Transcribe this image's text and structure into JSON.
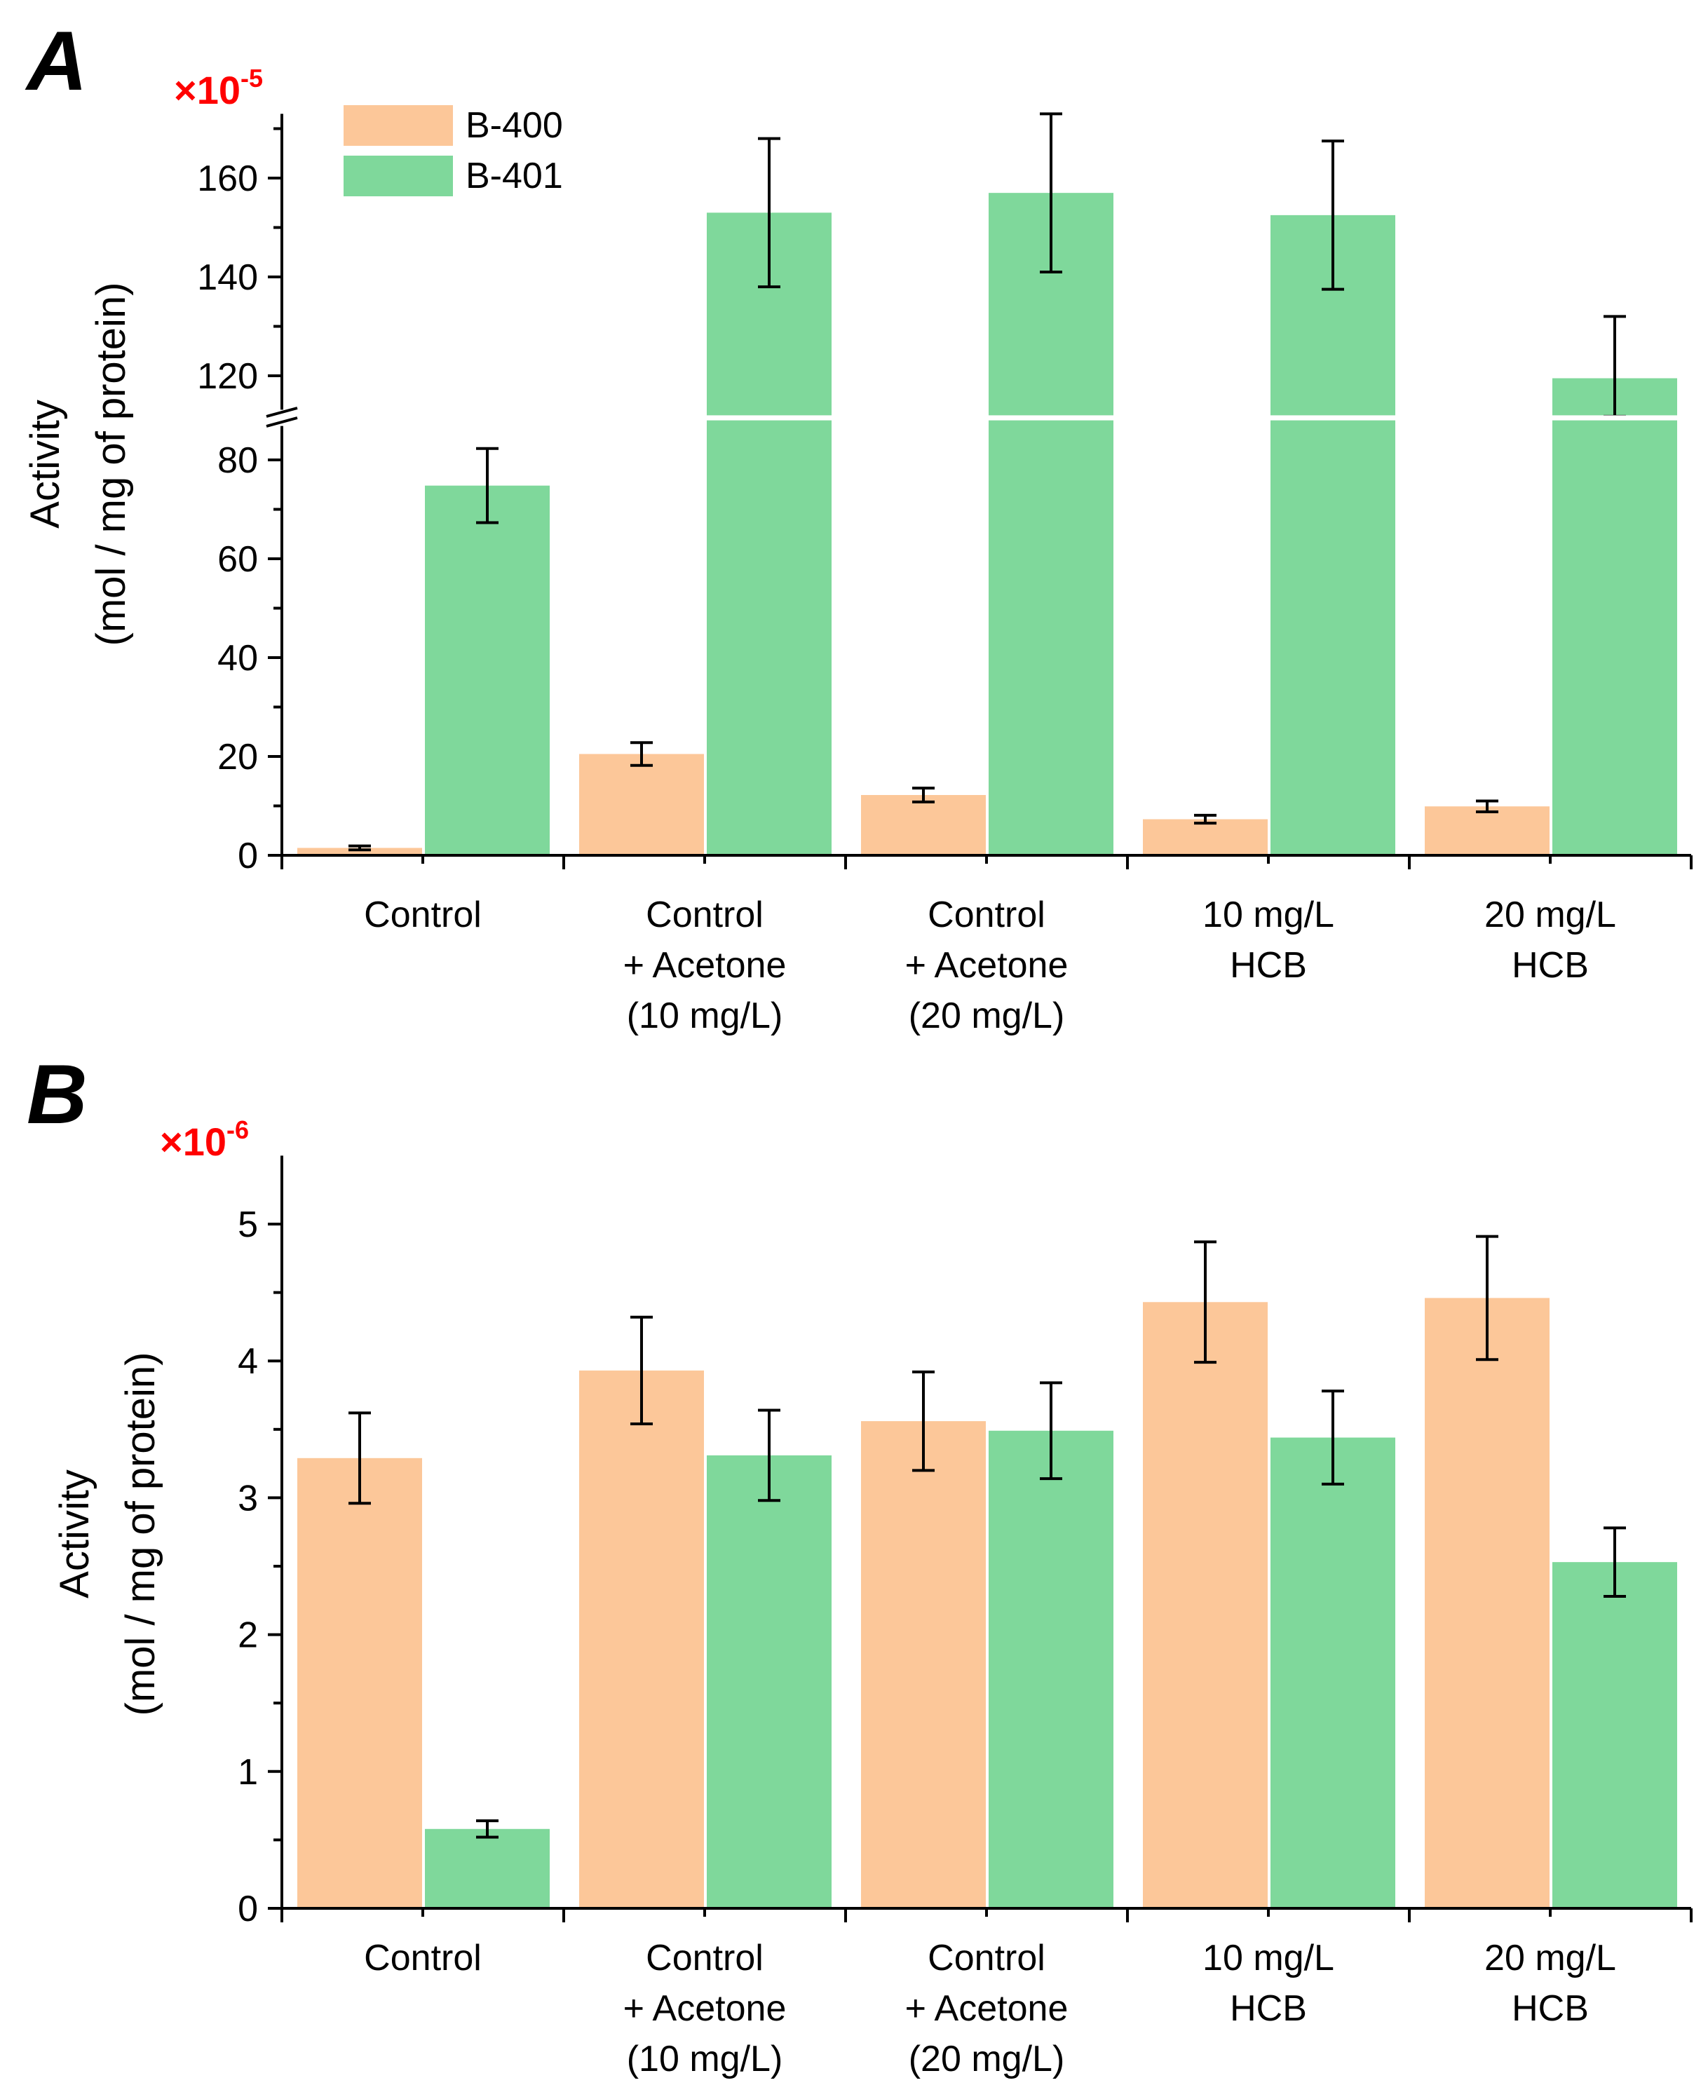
{
  "colors": {
    "b400": "#FCC799",
    "b401": "#7FD89B",
    "multiplier": "#FF0000",
    "axis": "#000000"
  },
  "chart_data": [
    {
      "panel": "A",
      "type": "bar",
      "multiplier_base": "×10",
      "multiplier_exp": "-5",
      "ylabel_line1": "Activity",
      "ylabel_line2": "(mol / mg of protein)",
      "categories": [
        [
          "Control"
        ],
        [
          "Control",
          "+ Acetone",
          "(10 mg/L)"
        ],
        [
          "Control",
          "+ Acetone",
          "(20 mg/L)"
        ],
        [
          "10 mg/L",
          "HCB"
        ],
        [
          "20 mg/L",
          "HCB"
        ]
      ],
      "series": [
        {
          "name": "B-400",
          "color_key": "b400",
          "values": [
            1.5,
            20.5,
            12.2,
            7.3,
            9.9
          ],
          "errors": [
            0.4,
            2.3,
            1.4,
            0.8,
            1.1
          ]
        },
        {
          "name": "B-401",
          "color_key": "b401",
          "values": [
            74.8,
            153,
            157,
            152.5,
            119.5
          ],
          "errors": [
            7.5,
            15,
            16,
            15,
            12.5
          ]
        }
      ],
      "y_axis_break": {
        "lower_range": [
          0,
          88
        ],
        "upper_range": [
          112,
          173
        ]
      },
      "lower_ticks": [
        0,
        20,
        40,
        60,
        80
      ],
      "upper_ticks": [
        120,
        140,
        160
      ],
      "legend": [
        "B-400",
        "B-401"
      ],
      "legend_position": "top-left"
    },
    {
      "panel": "B",
      "type": "bar",
      "multiplier_base": "×10",
      "multiplier_exp": "-6",
      "ylabel_line1": "Activity",
      "ylabel_line2": "(mol / mg of protein)",
      "categories": [
        [
          "Control"
        ],
        [
          "Control",
          "+ Acetone",
          "(10 mg/L)"
        ],
        [
          "Control",
          "+ Acetone",
          "(20 mg/L)"
        ],
        [
          "10 mg/L",
          "HCB"
        ],
        [
          "20 mg/L",
          "HCB"
        ]
      ],
      "series": [
        {
          "name": "B-400",
          "color_key": "b400",
          "values": [
            3.29,
            3.93,
            3.56,
            4.43,
            4.46
          ],
          "errors": [
            0.33,
            0.39,
            0.36,
            0.44,
            0.45
          ]
        },
        {
          "name": "B-401",
          "color_key": "b401",
          "values": [
            0.58,
            3.31,
            3.49,
            3.44,
            2.53
          ],
          "errors": [
            0.06,
            0.33,
            0.35,
            0.34,
            0.25
          ]
        }
      ],
      "ylim": [
        0,
        5.5
      ],
      "ticks": [
        0,
        1,
        2,
        3,
        4,
        5
      ]
    }
  ]
}
